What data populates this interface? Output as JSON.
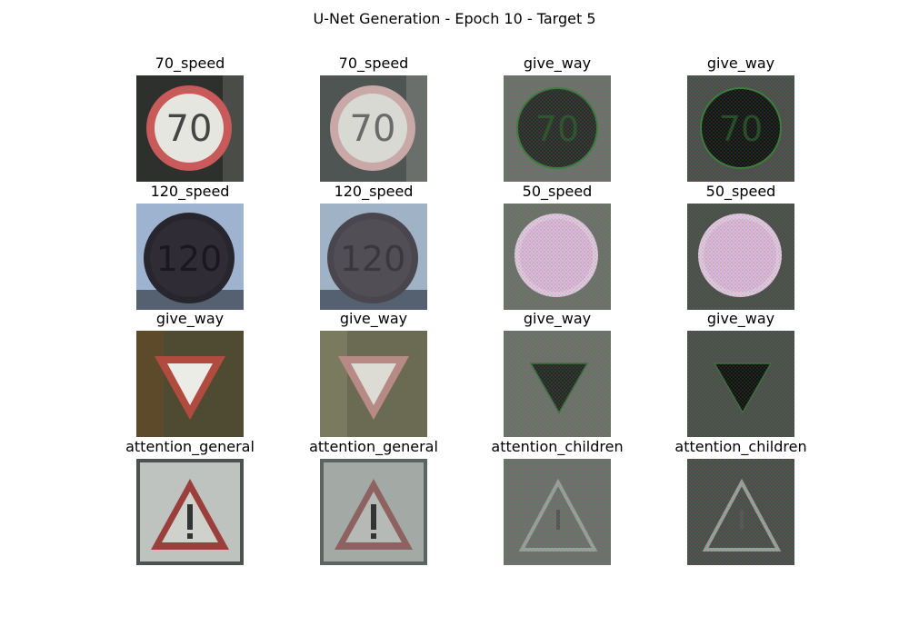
{
  "figure": {
    "title": "U-Net Generation - Epoch 10 - Target 5"
  },
  "rows": [
    [
      {
        "label": "70_speed",
        "kind": "speed",
        "text": "70",
        "variant": "real"
      },
      {
        "label": "70_speed",
        "kind": "speed",
        "text": "70",
        "variant": "recon"
      },
      {
        "label": "give_way",
        "kind": "gen_circle_dark",
        "text": "70",
        "variant": "gen"
      },
      {
        "label": "give_way",
        "kind": "gen_circle_dark",
        "text": "70",
        "variant": "gen2"
      }
    ],
    [
      {
        "label": "120_speed",
        "kind": "dark_speed",
        "text": "120",
        "variant": "real"
      },
      {
        "label": "120_speed",
        "kind": "dark_speed",
        "text": "120",
        "variant": "recon"
      },
      {
        "label": "50_speed",
        "kind": "gen_circle_bright",
        "text": "",
        "variant": "gen"
      },
      {
        "label": "50_speed",
        "kind": "gen_circle_bright",
        "text": "",
        "variant": "gen2"
      }
    ],
    [
      {
        "label": "give_way",
        "kind": "yield",
        "text": "",
        "variant": "real"
      },
      {
        "label": "give_way",
        "kind": "yield",
        "text": "",
        "variant": "recon"
      },
      {
        "label": "give_way",
        "kind": "gen_yield",
        "text": "",
        "variant": "gen"
      },
      {
        "label": "give_way",
        "kind": "gen_yield",
        "text": "",
        "variant": "gen2"
      }
    ],
    [
      {
        "label": "attention_general",
        "kind": "attention",
        "text": "",
        "variant": "real"
      },
      {
        "label": "attention_general",
        "kind": "attention",
        "text": "",
        "variant": "recon"
      },
      {
        "label": "attention_children",
        "kind": "gen_attention",
        "text": "",
        "variant": "gen"
      },
      {
        "label": "attention_children",
        "kind": "gen_attention",
        "text": "",
        "variant": "gen2"
      }
    ]
  ]
}
